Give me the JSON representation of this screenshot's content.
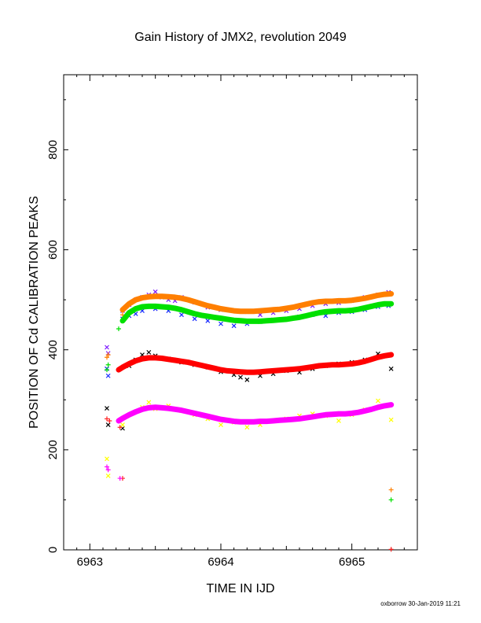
{
  "chart_data": {
    "type": "scatter",
    "title": "Gain History of JMX2, revolution 2049",
    "xlabel": "TIME IN IJD",
    "ylabel": "POSITION OF Cd CALIBRATION PEAKS",
    "xlim": [
      6962.8,
      6965.5
    ],
    "ylim": [
      0,
      950
    ],
    "xticks": [
      6963,
      6964,
      6965
    ],
    "xtick_labels": [
      "6963",
      "6964",
      "6965"
    ],
    "yticks": [
      0,
      200,
      400,
      600,
      800
    ],
    "ytick_labels": [
      "0",
      "200",
      "400",
      "600",
      "800"
    ],
    "grid": false,
    "series": [
      {
        "color": "#7b16ff",
        "marker": "x",
        "x": [
          6963.13,
          6963.14,
          6963.25,
          6963.3,
          6963.35,
          6963.4,
          6963.45,
          6963.5,
          6963.55,
          6963.6,
          6963.65,
          6963.7,
          6963.8,
          6963.9,
          6964.0,
          6964.1,
          6964.2,
          6964.3,
          6964.4,
          6964.5,
          6964.6,
          6964.7,
          6964.8,
          6964.9,
          6965.0,
          6965.1,
          6965.2,
          6965.28
        ],
        "y": [
          405,
          393,
          478,
          490,
          500,
          505,
          510,
          516,
          505,
          500,
          498,
          505,
          495,
          485,
          480,
          478,
          476,
          470,
          474,
          478,
          482,
          488,
          492,
          494,
          498,
          505,
          510,
          515
        ]
      },
      {
        "color": "#1428ff",
        "marker": "x",
        "x": [
          6963.13,
          6963.14,
          6963.25,
          6963.3,
          6963.35,
          6963.4,
          6963.5,
          6963.6,
          6963.7,
          6963.8,
          6963.9,
          6964.0,
          6964.1,
          6964.2,
          6964.3,
          6964.4,
          6964.5,
          6964.6,
          6964.7,
          6964.8,
          6964.9,
          6965.0,
          6965.1,
          6965.2,
          6965.28
        ],
        "y": [
          362,
          348,
          462,
          468,
          472,
          478,
          482,
          478,
          470,
          462,
          458,
          452,
          448,
          452,
          456,
          460,
          462,
          466,
          470,
          468,
          474,
          476,
          480,
          486,
          488
        ]
      },
      {
        "color": "#000000",
        "marker": "x",
        "x": [
          6963.13,
          6963.14,
          6963.25,
          6963.3,
          6963.35,
          6963.4,
          6963.45,
          6963.5,
          6963.6,
          6963.7,
          6963.8,
          6963.9,
          6964.0,
          6964.1,
          6964.15,
          6964.2,
          6964.3,
          6964.4,
          6964.5,
          6964.6,
          6964.7,
          6964.8,
          6964.9,
          6965.0,
          6965.1,
          6965.2,
          6965.3
        ],
        "y": [
          283,
          250,
          243,
          368,
          380,
          390,
          395,
          388,
          382,
          375,
          370,
          365,
          356,
          350,
          345,
          340,
          348,
          352,
          358,
          355,
          362,
          368,
          372,
          375,
          380,
          392,
          362
        ]
      },
      {
        "color": "#ffff00",
        "marker": "x",
        "x": [
          6963.13,
          6963.14,
          6963.25,
          6963.3,
          6963.4,
          6963.45,
          6963.5,
          6963.6,
          6963.7,
          6963.8,
          6963.9,
          6964.0,
          6964.1,
          6964.2,
          6964.3,
          6964.4,
          6964.5,
          6964.6,
          6964.7,
          6964.8,
          6964.9,
          6965.0,
          6965.1,
          6965.2,
          6965.3
        ],
        "y": [
          182,
          148,
          250,
          270,
          285,
          295,
          282,
          288,
          278,
          270,
          262,
          250,
          255,
          245,
          250,
          258,
          262,
          268,
          272,
          268,
          258,
          270,
          280,
          298,
          260
        ]
      },
      {
        "color": "#ff7f00",
        "marker": "+",
        "x": [
          6963.13,
          6963.14,
          6963.25,
          6965.3
        ],
        "y": [
          385,
          390,
          470,
          120
        ]
      },
      {
        "color": "#00e000",
        "marker": "+",
        "x": [
          6963.13,
          6963.14,
          6963.22,
          6963.25,
          6965.3
        ],
        "y": [
          360,
          370,
          442,
          458,
          100
        ]
      },
      {
        "color": "#ff2020",
        "marker": "+",
        "x": [
          6963.13,
          6963.15,
          6963.23,
          6963.25,
          6965.3
        ],
        "y": [
          262,
          258,
          245,
          143,
          1
        ]
      },
      {
        "color": "#ff00ff",
        "marker": "+",
        "x": [
          6963.13,
          6963.14,
          6963.23
        ],
        "y": [
          166,
          160,
          143
        ]
      },
      {
        "color": "#ff7f00",
        "marker": "fit",
        "x": [
          6963.25,
          6963.3,
          6963.35,
          6963.4,
          6963.45,
          6963.5,
          6963.55,
          6963.6,
          6963.65,
          6963.7,
          6963.75,
          6963.8,
          6963.85,
          6963.9,
          6963.95,
          6964.0,
          6964.05,
          6964.1,
          6964.15,
          6964.2,
          6964.25,
          6964.3,
          6964.35,
          6964.4,
          6964.45,
          6964.5,
          6964.55,
          6964.6,
          6964.65,
          6964.7,
          6964.75,
          6964.8,
          6964.85,
          6964.9,
          6964.95,
          6965.0,
          6965.05,
          6965.1,
          6965.15,
          6965.2,
          6965.25,
          6965.3
        ],
        "y": [
          480,
          492,
          500,
          504,
          506,
          507,
          507,
          506,
          505,
          503,
          500,
          496,
          492,
          488,
          485,
          482,
          480,
          478,
          477,
          477,
          477,
          478,
          479,
          480,
          481,
          483,
          485,
          488,
          491,
          494,
          496,
          497,
          497,
          498,
          498,
          499,
          501,
          503,
          506,
          509,
          511,
          512
        ]
      },
      {
        "color": "#00e000",
        "marker": "fit",
        "x": [
          6963.25,
          6963.3,
          6963.35,
          6963.4,
          6963.45,
          6963.5,
          6963.55,
          6963.6,
          6963.65,
          6963.7,
          6963.75,
          6963.8,
          6963.85,
          6963.9,
          6963.95,
          6964.0,
          6964.05,
          6964.1,
          6964.15,
          6964.2,
          6964.25,
          6964.3,
          6964.35,
          6964.4,
          6964.45,
          6964.5,
          6964.55,
          6964.6,
          6964.65,
          6964.7,
          6964.75,
          6964.8,
          6964.85,
          6964.9,
          6964.95,
          6965.0,
          6965.05,
          6965.1,
          6965.15,
          6965.2,
          6965.25,
          6965.3
        ],
        "y": [
          458,
          474,
          482,
          486,
          487,
          487,
          486,
          485,
          483,
          480,
          476,
          472,
          469,
          467,
          465,
          463,
          461,
          459,
          458,
          457,
          457,
          457,
          458,
          459,
          460,
          461,
          463,
          465,
          468,
          471,
          474,
          476,
          477,
          478,
          478,
          479,
          481,
          484,
          487,
          490,
          492,
          492
        ]
      },
      {
        "color": "#ff0000",
        "marker": "fit",
        "x": [
          6963.22,
          6963.25,
          6963.3,
          6963.35,
          6963.4,
          6963.45,
          6963.5,
          6963.55,
          6963.6,
          6963.65,
          6963.7,
          6963.75,
          6963.8,
          6963.85,
          6963.9,
          6963.95,
          6964.0,
          6964.05,
          6964.1,
          6964.15,
          6964.2,
          6964.25,
          6964.3,
          6964.35,
          6964.4,
          6964.45,
          6964.5,
          6964.55,
          6964.6,
          6964.65,
          6964.7,
          6964.75,
          6964.8,
          6964.85,
          6964.9,
          6964.95,
          6965.0,
          6965.05,
          6965.1,
          6965.15,
          6965.2,
          6965.25,
          6965.3
        ],
        "y": [
          360,
          365,
          372,
          378,
          382,
          384,
          384,
          383,
          381,
          379,
          377,
          375,
          372,
          369,
          366,
          363,
          360,
          358,
          357,
          356,
          355,
          355,
          356,
          357,
          358,
          359,
          360,
          361,
          362,
          364,
          366,
          368,
          369,
          370,
          370,
          371,
          372,
          374,
          377,
          381,
          385,
          388,
          390
        ]
      },
      {
        "color": "#ff00ff",
        "marker": "fit",
        "x": [
          6963.22,
          6963.25,
          6963.3,
          6963.35,
          6963.4,
          6963.45,
          6963.5,
          6963.55,
          6963.6,
          6963.65,
          6963.7,
          6963.75,
          6963.8,
          6963.85,
          6963.9,
          6963.95,
          6964.0,
          6964.05,
          6964.1,
          6964.15,
          6964.2,
          6964.25,
          6964.3,
          6964.35,
          6964.4,
          6964.45,
          6964.5,
          6964.55,
          6964.6,
          6964.65,
          6964.7,
          6964.75,
          6964.8,
          6964.85,
          6964.9,
          6964.95,
          6965.0,
          6965.05,
          6965.1,
          6965.15,
          6965.2,
          6965.25,
          6965.3
        ],
        "y": [
          258,
          263,
          270,
          276,
          281,
          284,
          285,
          284,
          283,
          281,
          279,
          276,
          273,
          270,
          267,
          264,
          261,
          259,
          257,
          256,
          256,
          256,
          257,
          257,
          258,
          259,
          260,
          261,
          262,
          264,
          266,
          268,
          270,
          271,
          272,
          272,
          273,
          275,
          278,
          281,
          285,
          288,
          290
        ]
      }
    ]
  },
  "footer": {
    "credit": "oxborrow 30-Jan-2019 11:21"
  }
}
